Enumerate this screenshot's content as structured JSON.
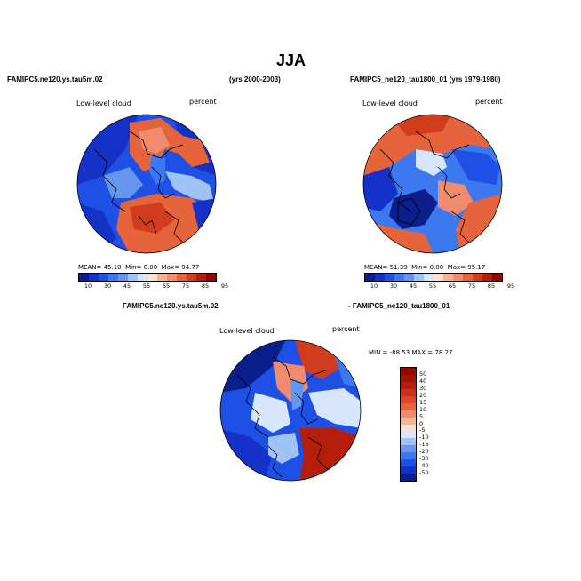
{
  "figure": {
    "title": "JJA",
    "panels": [
      {
        "case_label": "FAMIPC5.ne120.ys.tau5m.02",
        "years_label": "(yrs 2000-2003)",
        "variable": "Low-level cloud",
        "units": "percent",
        "stats": {
          "mean_label": "MEAN=",
          "mean": "45.10",
          "min_label": "Min=",
          "min": "0.00",
          "max_label": "Max=",
          "max": "94.77"
        }
      },
      {
        "case_label": "FAMIPC5_ne120_tau1800_01 (yrs 1979-1980)",
        "variable": "Low-level cloud",
        "units": "percent",
        "stats": {
          "mean_label": "MEAN=",
          "mean": "51.39",
          "min_label": "Min=",
          "min": "0.00",
          "max_label": "Max=",
          "max": "95.17"
        }
      },
      {
        "case_label_left": "FAMIPC5.ne120.ys.tau5m.02",
        "case_label_right": "- FAMIPC5_ne120_tau1800_01",
        "variable": "Low-level cloud",
        "units": "percent",
        "stats_line": "MIN = -88.53  MAX =  78.27"
      }
    ],
    "colorbar_abs": {
      "ticks": [
        "10",
        "30",
        "45",
        "55",
        "65",
        "75",
        "85",
        "95"
      ],
      "colors": [
        "#0a1e8c",
        "#1432c8",
        "#1e50e6",
        "#3c78f0",
        "#6496f0",
        "#a0c3f5",
        "#d7e6fa",
        "#fae1d2",
        "#f5b496",
        "#f08c6e",
        "#e6643c",
        "#d23c1e",
        "#b41e0a",
        "#8c0a00"
      ]
    },
    "colorbar_diff": {
      "ticks": [
        "50",
        "40",
        "30",
        "20",
        "15",
        "10",
        "5",
        "0",
        "-5",
        "-10",
        "-15",
        "-20",
        "-30",
        "-40",
        "-50"
      ],
      "colors": [
        "#8c0a00",
        "#a0140a",
        "#b41e0a",
        "#c8321a",
        "#dc4628",
        "#e6643c",
        "#f08c6e",
        "#f5b496",
        "#fae1d2",
        "#d7e6fa",
        "#a0c3f5",
        "#6e96f0",
        "#3c78f0",
        "#1e50e6",
        "#1432c8",
        "#0a1e8c"
      ]
    }
  }
}
